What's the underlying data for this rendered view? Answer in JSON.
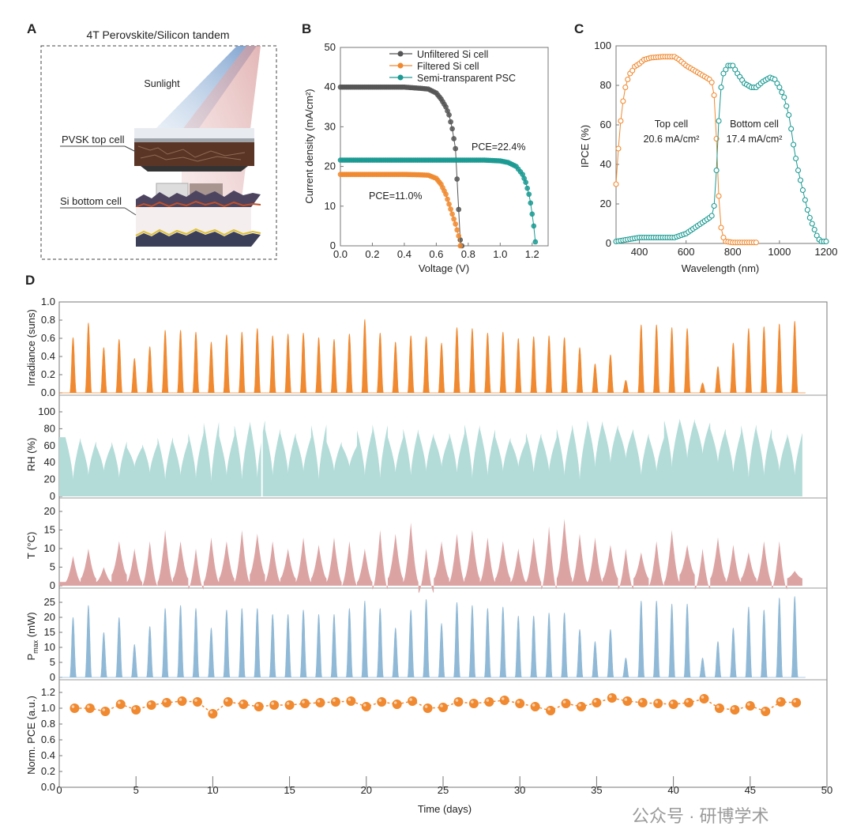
{
  "figure": {
    "panel_letters": [
      "A",
      "B",
      "C",
      "D"
    ],
    "watermark": "公众号 · 研博学术"
  },
  "panel_a": {
    "title": "4T Perovskite/Silicon tandem",
    "sunlight_label": "Sunlight",
    "top_cell_label": "PVSK top cell",
    "bottom_cell_label": "Si bottom cell"
  },
  "chart_data": [
    {
      "id": "B",
      "type": "scatter-line",
      "xlabel": "Voltage (V)",
      "ylabel": "Current density (mA/cm²)",
      "xlim": [
        0,
        1.3
      ],
      "ylim": [
        0,
        50
      ],
      "xticks": [
        "0.0",
        "0.2",
        "0.4",
        "0.6",
        "0.8",
        "1.0",
        "1.2"
      ],
      "yticks": [
        "0",
        "10",
        "20",
        "30",
        "40",
        "50"
      ],
      "legend_position": "top-right",
      "annotations": [
        "PCE=22.4%",
        "PCE=11.0%"
      ],
      "series": [
        {
          "name": "Unfiltered Si cell",
          "color": "#555555",
          "points": [
            [
              0,
              40
            ],
            [
              0.1,
              40
            ],
            [
              0.2,
              40
            ],
            [
              0.3,
              40
            ],
            [
              0.4,
              40
            ],
            [
              0.5,
              39.7
            ],
            [
              0.55,
              39.5
            ],
            [
              0.6,
              38.5
            ],
            [
              0.63,
              37
            ],
            [
              0.66,
              35
            ],
            [
              0.68,
              33
            ],
            [
              0.7,
              29.5
            ],
            [
              0.71,
              27
            ],
            [
              0.72,
              24.5
            ],
            [
              0.75,
              1.5
            ],
            [
              0.76,
              0
            ]
          ]
        },
        {
          "name": "Filtered Si cell",
          "color": "#f0892f",
          "points": [
            [
              0,
              18
            ],
            [
              0.1,
              18
            ],
            [
              0.2,
              18
            ],
            [
              0.3,
              18
            ],
            [
              0.4,
              18
            ],
            [
              0.5,
              17.9
            ],
            [
              0.55,
              17.8
            ],
            [
              0.6,
              17
            ],
            [
              0.63,
              15.5
            ],
            [
              0.66,
              13
            ],
            [
              0.68,
              10.5
            ],
            [
              0.7,
              8
            ],
            [
              0.72,
              5.5
            ],
            [
              0.74,
              2.5
            ],
            [
              0.75,
              0
            ]
          ]
        },
        {
          "name": "Semi-transparent PSC",
          "color": "#1a9a92",
          "points": [
            [
              0,
              21.6
            ],
            [
              0.2,
              21.6
            ],
            [
              0.4,
              21.6
            ],
            [
              0.6,
              21.6
            ],
            [
              0.8,
              21.6
            ],
            [
              0.9,
              21.6
            ],
            [
              1.0,
              21.4
            ],
            [
              1.05,
              21
            ],
            [
              1.1,
              20
            ],
            [
              1.14,
              18
            ],
            [
              1.16,
              16
            ],
            [
              1.18,
              13
            ],
            [
              1.19,
              10.8
            ],
            [
              1.2,
              8
            ],
            [
              1.21,
              5
            ],
            [
              1.22,
              1
            ]
          ]
        }
      ]
    },
    {
      "id": "C",
      "type": "scatter-line",
      "xlabel": "Wavelength (nm)",
      "ylabel": "IPCE (%)",
      "xlim": [
        300,
        1200
      ],
      "ylim": [
        0,
        100
      ],
      "xticks": [
        "400",
        "600",
        "800",
        "1000",
        "1200"
      ],
      "yticks": [
        "0",
        "20",
        "40",
        "60",
        "80",
        "100"
      ],
      "annotations": [
        {
          "line1": "Top cell",
          "line2": "20.6 mA/cm²"
        },
        {
          "line1": "Bottom cell",
          "line2": "17.4 mA/cm²"
        }
      ],
      "series": [
        {
          "color": "#f0892f",
          "points": [
            [
              300,
              30
            ],
            [
              310,
              48
            ],
            [
              320,
              62
            ],
            [
              330,
              72
            ],
            [
              340,
              79
            ],
            [
              350,
              83
            ],
            [
              360,
              86
            ],
            [
              370,
              87.5
            ],
            [
              380,
              89.5
            ],
            [
              400,
              91
            ],
            [
              420,
              93
            ],
            [
              450,
              94
            ],
            [
              500,
              94.5
            ],
            [
              550,
              94.5
            ],
            [
              570,
              93
            ],
            [
              600,
              90
            ],
            [
              650,
              86.5
            ],
            [
              700,
              83
            ],
            [
              710,
              81.5
            ],
            [
              720,
              75
            ],
            [
              730,
              53
            ],
            [
              740,
              24
            ],
            [
              750,
              8
            ],
            [
              760,
              3
            ],
            [
              770,
              1
            ],
            [
              800,
              0.5
            ],
            [
              900,
              0.5
            ]
          ]
        },
        {
          "color": "#1a9a92",
          "points": [
            [
              300,
              1
            ],
            [
              350,
              2
            ],
            [
              400,
              3
            ],
            [
              450,
              3
            ],
            [
              550,
              3
            ],
            [
              600,
              5
            ],
            [
              650,
              9
            ],
            [
              700,
              13
            ],
            [
              710,
              14
            ],
            [
              720,
              19
            ],
            [
              730,
              37
            ],
            [
              740,
              62
            ],
            [
              750,
              79
            ],
            [
              760,
              86
            ],
            [
              780,
              90
            ],
            [
              800,
              90
            ],
            [
              820,
              86
            ],
            [
              850,
              81
            ],
            [
              880,
              79
            ],
            [
              900,
              79
            ],
            [
              930,
              82
            ],
            [
              960,
              84
            ],
            [
              980,
              83
            ],
            [
              1000,
              79
            ],
            [
              1020,
              74
            ],
            [
              1040,
              65
            ],
            [
              1050,
              58
            ],
            [
              1060,
              50
            ],
            [
              1070,
              43
            ],
            [
              1080,
              37
            ],
            [
              1090,
              32
            ],
            [
              1100,
              27
            ],
            [
              1110,
              22
            ],
            [
              1120,
              17
            ],
            [
              1130,
              13
            ],
            [
              1140,
              10
            ],
            [
              1150,
              7
            ],
            [
              1160,
              4
            ],
            [
              1170,
              2
            ],
            [
              1180,
              1
            ],
            [
              1200,
              1
            ]
          ]
        }
      ]
    },
    {
      "id": "D",
      "type": "area-timeseries",
      "xlabel": "Time (days)",
      "xlim": [
        0,
        50
      ],
      "xticks": [
        "0",
        "5",
        "10",
        "15",
        "20",
        "25",
        "30",
        "35",
        "40",
        "45",
        "50"
      ],
      "panels": [
        {
          "ylabel": "Irradiance (suns)",
          "color": "#f0892f",
          "ylim": [
            0,
            1.0
          ],
          "yticks": [
            "0.0",
            "0.2",
            "0.4",
            "0.6",
            "0.8",
            "1.0"
          ],
          "daily_peak": [
            0.61,
            0.77,
            0.5,
            0.59,
            0.38,
            0.51,
            0.69,
            0.69,
            0.67,
            0.56,
            0.64,
            0.67,
            0.71,
            0.63,
            0.65,
            0.66,
            0.61,
            0.59,
            0.65,
            0.81,
            0.66,
            0.56,
            0.63,
            0.62,
            0.55,
            0.72,
            0.71,
            0.66,
            0.67,
            0.6,
            0.62,
            0.63,
            0.61,
            0.5,
            0.32,
            0.42,
            0.14,
            0.75,
            0.75,
            0.72,
            0.71,
            0.11,
            0.29,
            0.55,
            0.71,
            0.73,
            0.76,
            0.79
          ]
        },
        {
          "ylabel": "RH (%)",
          "color": "#b3dcd9",
          "ylim": [
            0,
            100
          ],
          "yticks": [
            "0",
            "20",
            "40",
            "60",
            "80",
            "100"
          ],
          "daily_max": [
            70,
            65,
            60,
            65,
            58,
            62,
            70,
            65,
            75,
            88,
            72,
            85,
            90,
            80,
            75,
            70,
            85,
            65,
            60,
            78,
            85,
            70,
            80,
            75,
            70,
            75,
            85,
            80,
            70,
            65,
            75,
            70,
            80,
            85,
            90,
            85,
            80,
            75,
            70,
            90,
            92,
            88,
            80,
            75,
            85,
            80,
            70,
            75
          ],
          "daily_min": [
            20,
            25,
            30,
            22,
            35,
            28,
            20,
            25,
            22,
            18,
            25,
            20,
            22,
            25,
            28,
            30,
            20,
            30,
            35,
            25,
            22,
            28,
            25,
            30,
            35,
            28,
            22,
            25,
            30,
            35,
            28,
            30,
            25,
            20,
            35,
            40,
            45,
            25,
            30,
            35,
            45,
            50,
            40,
            28,
            22,
            25,
            30,
            25
          ]
        },
        {
          "ylabel": "T (°C)",
          "color": "#dca3a3",
          "ylim": [
            0,
            20
          ],
          "yticks": [
            "0",
            "5",
            "10",
            "15",
            "20"
          ],
          "daily_max": [
            8,
            10,
            5,
            12,
            10,
            12,
            15,
            12,
            10,
            13,
            12,
            15,
            14,
            12,
            10,
            13,
            11,
            13,
            12,
            10,
            15,
            14,
            17,
            10,
            12,
            14,
            15,
            13,
            12,
            10,
            13,
            16,
            18,
            14,
            13,
            11,
            10,
            9,
            12,
            15,
            11,
            10,
            13,
            11,
            9,
            12,
            12,
            4
          ],
          "daily_min": [
            1,
            2,
            1,
            3,
            1,
            0,
            1,
            2,
            -1,
            1,
            2,
            1,
            3,
            1,
            2,
            1,
            2,
            1,
            0,
            1,
            -1,
            2,
            1,
            -2,
            2,
            1,
            2,
            1,
            2,
            1,
            1,
            -1,
            2,
            1,
            1,
            2,
            -1,
            2,
            0,
            1,
            3,
            -1,
            2,
            1,
            2,
            1,
            -1,
            2
          ]
        },
        {
          "ylabel": "P",
          "ylabel_sub": "max",
          "ylabel_unit": " (mW)",
          "color": "#8fb9d6",
          "ylim": [
            0,
            28
          ],
          "yticks": [
            "0",
            "5",
            "10",
            "15",
            "20",
            "25"
          ],
          "daily_peak": [
            20,
            24,
            15,
            20,
            11,
            17,
            23,
            24,
            23,
            16.5,
            22.5,
            23,
            23,
            21,
            21,
            22.5,
            21,
            21,
            23,
            25.5,
            23,
            16.5,
            22.5,
            26,
            18,
            25,
            24,
            23,
            23.5,
            20.5,
            20.5,
            21.5,
            21.5,
            16,
            12,
            16,
            6.5,
            25.5,
            25.5,
            24.5,
            24.5,
            6.5,
            12,
            16.5,
            23.5,
            22.5,
            26.5,
            27
          ]
        },
        {
          "ylabel": "Norm. PCE (a.u.)",
          "color": "#f0892f",
          "ylim": [
            0,
            1.3
          ],
          "yticks": [
            "0.0",
            "0.2",
            "0.4",
            "0.6",
            "0.8",
            "1.0",
            "1.2"
          ],
          "days": [
            1,
            2,
            3,
            4,
            5,
            6,
            7,
            8,
            9,
            10,
            11,
            12,
            13,
            14,
            15,
            16,
            17,
            18,
            19,
            20,
            21,
            22,
            23,
            24,
            25,
            26,
            27,
            28,
            29,
            30,
            31,
            32,
            33,
            34,
            35,
            36,
            37,
            38,
            39,
            40,
            41,
            42,
            43,
            44,
            45,
            46,
            47,
            48
          ],
          "values": [
            1.0,
            1.0,
            0.96,
            1.05,
            0.98,
            1.04,
            1.07,
            1.09,
            1.08,
            0.93,
            1.08,
            1.05,
            1.02,
            1.04,
            1.04,
            1.06,
            1.07,
            1.08,
            1.09,
            1.02,
            1.08,
            1.05,
            1.09,
            1.0,
            1.01,
            1.08,
            1.06,
            1.08,
            1.1,
            1.06,
            1.02,
            0.97,
            1.06,
            1.02,
            1.07,
            1.13,
            1.09,
            1.07,
            1.06,
            1.05,
            1.07,
            1.12,
            1.0,
            0.98,
            1.03,
            0.96,
            1.08,
            1.07
          ]
        }
      ]
    }
  ]
}
